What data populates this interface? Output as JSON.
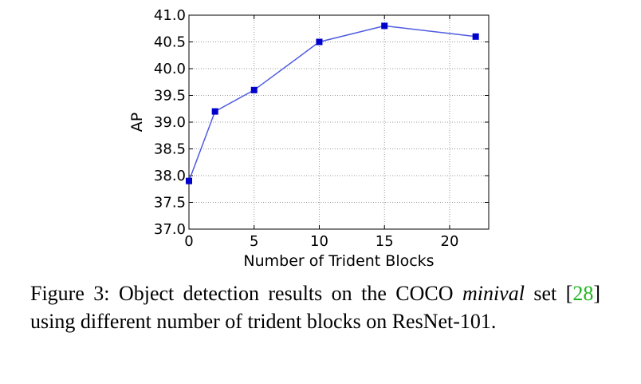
{
  "chart_data": {
    "type": "line",
    "xlabel": "Number of Trident Blocks",
    "ylabel": "AP",
    "xlim": [
      0,
      23
    ],
    "ylim": [
      37.0,
      41.0
    ],
    "x_ticks": [
      "0",
      "5",
      "10",
      "15",
      "20"
    ],
    "y_ticks": [
      "37.0",
      "37.5",
      "38.0",
      "38.5",
      "39.0",
      "39.5",
      "40.0",
      "40.5",
      "41.0"
    ],
    "grid": true,
    "series": [
      {
        "x": [
          0,
          2,
          5,
          10,
          15,
          22
        ],
        "y": [
          37.9,
          39.2,
          39.6,
          40.5,
          40.8,
          40.6
        ],
        "line_color": "#4f5be0",
        "marker_color": "#0000cc"
      }
    ]
  },
  "caption": {
    "prefix": "Figure 3:  Object detection results on the COCO ",
    "emph": "minival",
    "mid": " set [",
    "ref": "28",
    "suffix": "] using different number of trident blocks on ResNet-101."
  }
}
